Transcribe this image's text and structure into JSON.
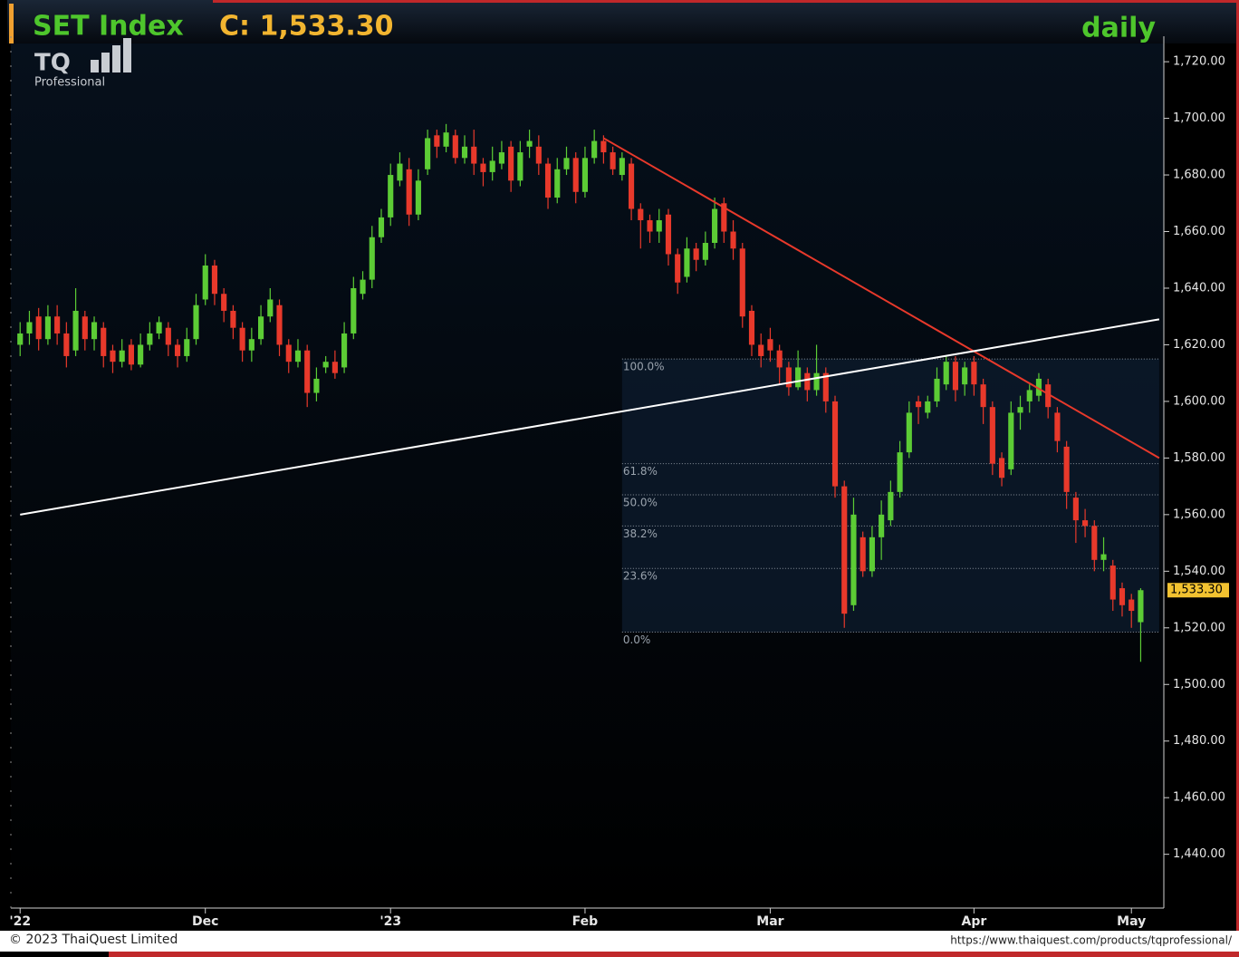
{
  "chart_data": {
    "type": "candlestick",
    "title": "SET Index",
    "subtitle": "C: 1,533.30",
    "timeframe": "daily",
    "logo": "TQ",
    "logo_caption": "Professional",
    "copyright": "© 2023 ThaiQuest Limited",
    "url": "https://www.thaiquest.com/products/tqprofessional/",
    "up_color": "#5ccc35",
    "down_color": "#e8392b",
    "ylim": [
      1421,
      1729
    ],
    "xlim": [
      -1,
      123.5
    ],
    "yticks": [
      {
        "value": 1440,
        "label": "1,440.00"
      },
      {
        "value": 1460,
        "label": "1,460.00"
      },
      {
        "value": 1480,
        "label": "1,480.00"
      },
      {
        "value": 1500,
        "label": "1,500.00"
      },
      {
        "value": 1520,
        "label": "1,520.00"
      },
      {
        "value": 1540,
        "label": "1,540.00"
      },
      {
        "value": 1560,
        "label": "1,560.00"
      },
      {
        "value": 1580,
        "label": "1,580.00"
      },
      {
        "value": 1600,
        "label": "1,600.00"
      },
      {
        "value": 1620,
        "label": "1,620.00"
      },
      {
        "value": 1640,
        "label": "1,640.00"
      },
      {
        "value": 1660,
        "label": "1,660.00"
      },
      {
        "value": 1680,
        "label": "1,680.00"
      },
      {
        "value": 1700,
        "label": "1,700.00"
      },
      {
        "value": 1720,
        "label": "1,720.00"
      }
    ],
    "xticks": [
      {
        "value": 0,
        "label": "'22"
      },
      {
        "value": 20,
        "label": "Dec"
      },
      {
        "value": 40,
        "label": "'23"
      },
      {
        "value": 61,
        "label": "Feb"
      },
      {
        "value": 81,
        "label": "Mar"
      },
      {
        "value": 103,
        "label": "Apr"
      },
      {
        "value": 120,
        "label": "May"
      }
    ],
    "last_price": 1533.3,
    "last_price_label": "1,533.30",
    "trendlines": [
      {
        "color": "#e8392b",
        "start": [
          63,
          1693
        ],
        "end": [
          123,
          1580
        ]
      },
      {
        "color": "#ffffff",
        "start": [
          0,
          1560
        ],
        "end": [
          123,
          1629
        ]
      }
    ],
    "fib_start": 65,
    "fib_end": 123,
    "fib_levels": [
      {
        "value": 1615,
        "label": "100.0%"
      },
      {
        "value": 1578,
        "label": "61.8%"
      },
      {
        "value": 1567,
        "label": "50.0%"
      },
      {
        "value": 1556,
        "label": "38.2%"
      },
      {
        "value": 1541,
        "label": "23.6%"
      },
      {
        "value": 1518.5,
        "label": "0.0%"
      }
    ],
    "candles": [
      [
        1620,
        1628,
        1616,
        1624
      ],
      [
        1624,
        1632,
        1620,
        1628
      ],
      [
        1630,
        1633,
        1618,
        1622
      ],
      [
        1622,
        1634,
        1620,
        1630
      ],
      [
        1630,
        1634,
        1620,
        1624
      ],
      [
        1624,
        1628,
        1612,
        1616
      ],
      [
        1618,
        1640,
        1616,
        1632
      ],
      [
        1630,
        1632,
        1618,
        1622
      ],
      [
        1622,
        1630,
        1618,
        1628
      ],
      [
        1626,
        1628,
        1612,
        1616
      ],
      [
        1618,
        1620,
        1610,
        1614
      ],
      [
        1614,
        1622,
        1612,
        1618
      ],
      [
        1620,
        1622,
        1611,
        1613
      ],
      [
        1613,
        1624,
        1612,
        1620
      ],
      [
        1620,
        1628,
        1618,
        1624
      ],
      [
        1624,
        1630,
        1622,
        1628
      ],
      [
        1626,
        1628,
        1616,
        1620
      ],
      [
        1620,
        1622,
        1612,
        1616
      ],
      [
        1616,
        1626,
        1614,
        1622
      ],
      [
        1622,
        1638,
        1620,
        1634
      ],
      [
        1636,
        1652,
        1634,
        1648
      ],
      [
        1648,
        1650,
        1634,
        1638
      ],
      [
        1638,
        1640,
        1628,
        1632
      ],
      [
        1632,
        1634,
        1622,
        1626
      ],
      [
        1626,
        1628,
        1614,
        1618
      ],
      [
        1618,
        1626,
        1614,
        1622
      ],
      [
        1622,
        1634,
        1620,
        1630
      ],
      [
        1630,
        1640,
        1628,
        1636
      ],
      [
        1634,
        1636,
        1616,
        1620
      ],
      [
        1620,
        1622,
        1610,
        1614
      ],
      [
        1614,
        1622,
        1612,
        1618
      ],
      [
        1618,
        1620,
        1598,
        1603
      ],
      [
        1603,
        1612,
        1600,
        1608
      ],
      [
        1612,
        1616,
        1610,
        1614
      ],
      [
        1614,
        1618,
        1608,
        1610
      ],
      [
        1612,
        1628,
        1610,
        1624
      ],
      [
        1624,
        1644,
        1622,
        1640
      ],
      [
        1638,
        1646,
        1636,
        1643
      ],
      [
        1643,
        1662,
        1640,
        1658
      ],
      [
        1658,
        1668,
        1656,
        1665
      ],
      [
        1665,
        1684,
        1662,
        1680
      ],
      [
        1678,
        1688,
        1676,
        1684
      ],
      [
        1682,
        1686,
        1662,
        1666
      ],
      [
        1666,
        1682,
        1664,
        1678
      ],
      [
        1682,
        1696,
        1680,
        1693
      ],
      [
        1694,
        1696,
        1686,
        1690
      ],
      [
        1690,
        1698,
        1688,
        1695
      ],
      [
        1694,
        1696,
        1684,
        1686
      ],
      [
        1686,
        1694,
        1684,
        1690
      ],
      [
        1690,
        1696,
        1680,
        1684
      ],
      [
        1684,
        1686,
        1676,
        1681
      ],
      [
        1681,
        1690,
        1678,
        1685
      ],
      [
        1684,
        1692,
        1682,
        1688
      ],
      [
        1690,
        1692,
        1674,
        1678
      ],
      [
        1678,
        1692,
        1676,
        1688
      ],
      [
        1690,
        1696,
        1686,
        1692
      ],
      [
        1690,
        1694,
        1680,
        1684
      ],
      [
        1684,
        1686,
        1668,
        1672
      ],
      [
        1672,
        1686,
        1670,
        1682
      ],
      [
        1682,
        1690,
        1680,
        1686
      ],
      [
        1686,
        1688,
        1670,
        1674
      ],
      [
        1674,
        1690,
        1672,
        1686
      ],
      [
        1686,
        1696,
        1684,
        1692
      ],
      [
        1692,
        1694,
        1684,
        1688
      ],
      [
        1688,
        1690,
        1680,
        1682
      ],
      [
        1680,
        1688,
        1678,
        1686
      ],
      [
        1684,
        1686,
        1664,
        1668
      ],
      [
        1668,
        1670,
        1654,
        1664
      ],
      [
        1664,
        1666,
        1656,
        1660
      ],
      [
        1660,
        1668,
        1656,
        1664
      ],
      [
        1666,
        1668,
        1648,
        1652
      ],
      [
        1652,
        1654,
        1638,
        1642
      ],
      [
        1644,
        1658,
        1642,
        1654
      ],
      [
        1654,
        1656,
        1646,
        1650
      ],
      [
        1650,
        1660,
        1648,
        1656
      ],
      [
        1656,
        1672,
        1654,
        1668
      ],
      [
        1670,
        1672,
        1656,
        1660
      ],
      [
        1660,
        1664,
        1650,
        1654
      ],
      [
        1654,
        1656,
        1626,
        1630
      ],
      [
        1632,
        1634,
        1616,
        1620
      ],
      [
        1620,
        1624,
        1612,
        1616
      ],
      [
        1622,
        1626,
        1614,
        1618
      ],
      [
        1618,
        1620,
        1606,
        1612
      ],
      [
        1612,
        1614,
        1602,
        1605
      ],
      [
        1605,
        1618,
        1604,
        1612
      ],
      [
        1610,
        1612,
        1600,
        1604
      ],
      [
        1604,
        1620,
        1602,
        1610
      ],
      [
        1610,
        1612,
        1596,
        1600
      ],
      [
        1600,
        1602,
        1566,
        1570
      ],
      [
        1570,
        1572,
        1520,
        1525
      ],
      [
        1528,
        1566,
        1526,
        1560
      ],
      [
        1552,
        1554,
        1538,
        1540
      ],
      [
        1540,
        1556,
        1538,
        1552
      ],
      [
        1552,
        1565,
        1544,
        1560
      ],
      [
        1558,
        1572,
        1556,
        1568
      ],
      [
        1568,
        1586,
        1566,
        1582
      ],
      [
        1582,
        1600,
        1580,
        1596
      ],
      [
        1600,
        1602,
        1592,
        1598
      ],
      [
        1596,
        1602,
        1594,
        1600
      ],
      [
        1600,
        1612,
        1598,
        1608
      ],
      [
        1606,
        1616,
        1604,
        1614
      ],
      [
        1614,
        1616,
        1600,
        1604
      ],
      [
        1606,
        1614,
        1602,
        1612
      ],
      [
        1614,
        1616,
        1602,
        1606
      ],
      [
        1606,
        1608,
        1592,
        1598
      ],
      [
        1598,
        1600,
        1574,
        1578
      ],
      [
        1580,
        1582,
        1570,
        1573
      ],
      [
        1576,
        1600,
        1574,
        1596
      ],
      [
        1596,
        1602,
        1590,
        1598
      ],
      [
        1600,
        1606,
        1596,
        1604
      ],
      [
        1602,
        1610,
        1600,
        1608
      ],
      [
        1606,
        1608,
        1594,
        1598
      ],
      [
        1596,
        1598,
        1582,
        1586
      ],
      [
        1584,
        1586,
        1562,
        1568
      ],
      [
        1566,
        1568,
        1550,
        1558
      ],
      [
        1558,
        1562,
        1552,
        1556
      ],
      [
        1556,
        1558,
        1540,
        1544
      ],
      [
        1544,
        1552,
        1540,
        1546
      ],
      [
        1542,
        1544,
        1526,
        1530
      ],
      [
        1534,
        1536,
        1524,
        1528
      ],
      [
        1530,
        1532,
        1520,
        1526
      ],
      [
        1522,
        1534,
        1508,
        1533.3
      ]
    ]
  }
}
